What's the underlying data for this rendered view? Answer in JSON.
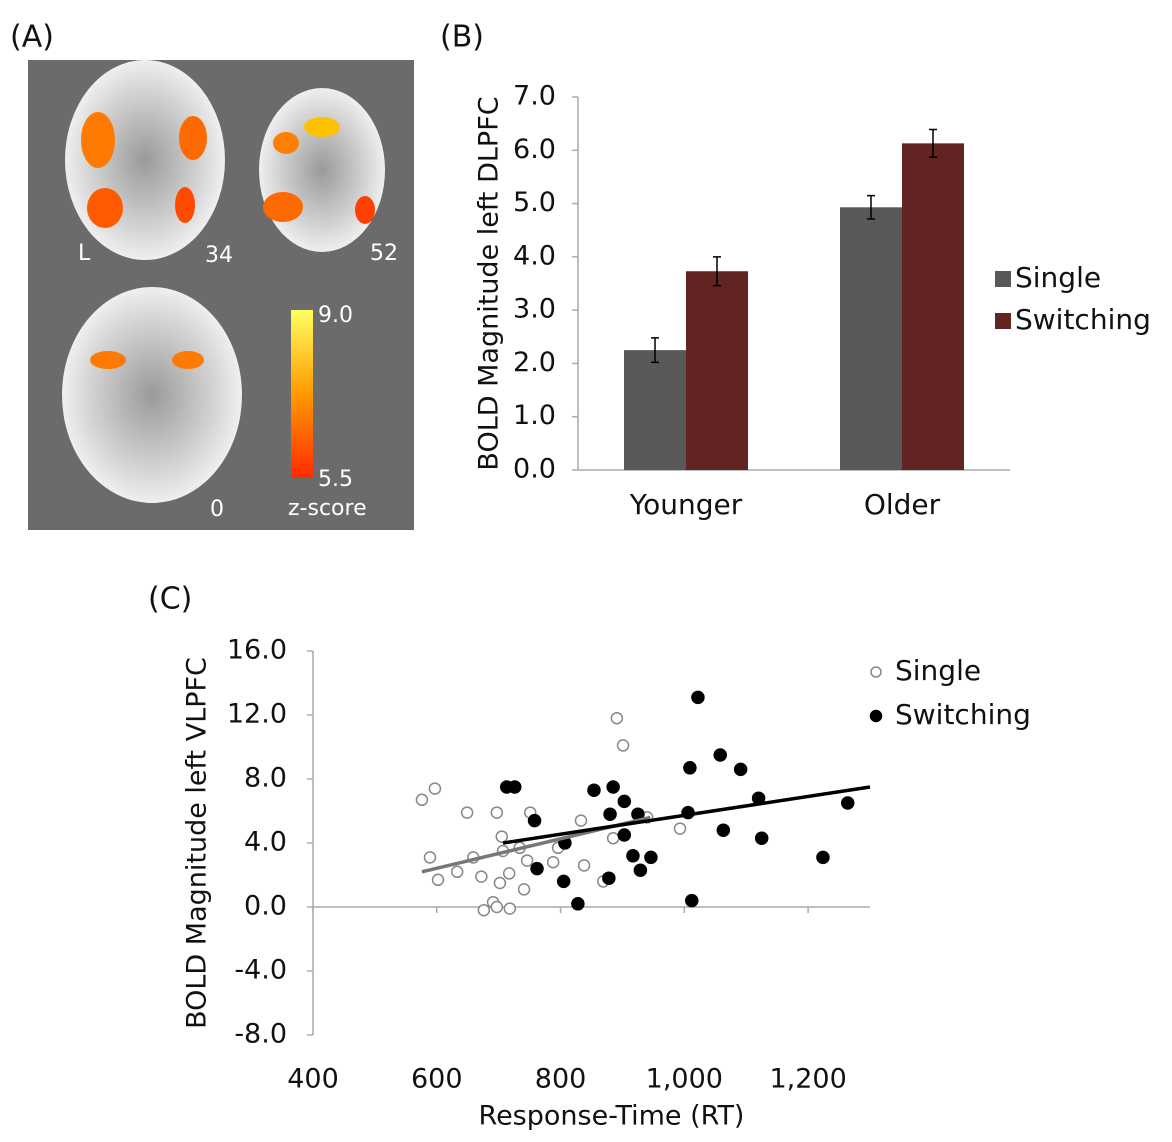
{
  "panel_a": {
    "label": "(A)",
    "slice_labels": [
      "L",
      "34",
      "52",
      "0"
    ],
    "colorbar": {
      "max": "9.0",
      "min": "5.5",
      "title": "z-score"
    }
  },
  "chart_data": [
    {
      "type": "bar",
      "panel_label": "(B)",
      "y_label": "BOLD Magnitude left DLPFC",
      "categories": [
        "Younger",
        "Older"
      ],
      "series": [
        {
          "name": "Single",
          "color": "#595959",
          "values": [
            2.25,
            4.93
          ],
          "errors": [
            0.23,
            0.22
          ]
        },
        {
          "name": "Switching",
          "color": "#622423",
          "values": [
            3.73,
            6.13
          ],
          "errors": [
            0.27,
            0.26
          ]
        }
      ],
      "ylim": [
        0,
        7
      ],
      "yticks": [
        {
          "value": 0,
          "label": "0.0"
        },
        {
          "value": 1,
          "label": "1.0"
        },
        {
          "value": 2,
          "label": "2.0"
        },
        {
          "value": 3,
          "label": "3.0"
        },
        {
          "value": 4,
          "label": "4.0"
        },
        {
          "value": 5,
          "label": "5.0"
        },
        {
          "value": 6,
          "label": "6.0"
        },
        {
          "value": 7,
          "label": "7.0"
        }
      ],
      "legend": "right"
    },
    {
      "type": "scatter",
      "panel_label": "(C)",
      "x_label": "Response-Time (RT)",
      "y_label": "BOLD Magnitude left VLPFC",
      "series": [
        {
          "name": "Single",
          "color": "#888888",
          "marker": "open",
          "x": [
            576,
            597,
            589,
            602,
            633,
            649,
            659,
            672,
            705,
            697,
            702,
            691,
            697,
            676,
            718,
            717,
            707,
            734,
            741,
            751,
            746,
            788,
            796,
            833,
            838,
            869,
            885,
            891,
            901,
            940,
            993
          ],
          "y": [
            6.7,
            7.4,
            3.1,
            1.7,
            2.2,
            5.9,
            3.1,
            1.9,
            4.4,
            5.9,
            1.5,
            0.3,
            0,
            -0.2,
            -0.1,
            2.1,
            3.5,
            3.7,
            1.1,
            5.9,
            2.9,
            2.8,
            3.7,
            5.4,
            2.6,
            1.6,
            4.3,
            11.8,
            10.1,
            5.6,
            4.9
          ]
        },
        {
          "name": "Switching",
          "color": "#000000",
          "marker": "filled",
          "x": [
            713,
            726,
            758,
            762,
            807,
            805,
            828,
            854,
            878,
            880,
            885,
            903,
            903,
            917,
            925,
            929,
            946,
            1006,
            1009,
            1012,
            1022,
            1058,
            1063,
            1091,
            1120,
            1125,
            1224,
            1264
          ],
          "y": [
            7.5,
            7.5,
            5.4,
            2.4,
            4.0,
            1.6,
            0.2,
            7.3,
            1.8,
            5.8,
            7.5,
            6.6,
            4.5,
            3.2,
            5.8,
            2.3,
            3.1,
            5.9,
            8.7,
            0.4,
            13.1,
            9.5,
            4.8,
            8.6,
            6.8,
            4.3,
            3.1,
            6.5
          ]
        }
      ],
      "trendlines": [
        {
          "color": "#777777",
          "x": [
            576,
            945
          ],
          "y": [
            2.2,
            5.6
          ]
        },
        {
          "color": "#000000",
          "x": [
            707,
            1300
          ],
          "y": [
            4.0,
            7.5
          ]
        }
      ],
      "xlim": [
        400,
        1300
      ],
      "ylim": [
        -8,
        16
      ],
      "xticks": [
        400,
        600,
        800,
        {
          "value": 1000,
          "label": "1,000"
        },
        {
          "value": 1200,
          "label": "1,200"
        }
      ],
      "yticks": [
        {
          "value": -8,
          "label": "-8.0"
        },
        {
          "value": -4,
          "label": "-4.0"
        },
        {
          "value": 0,
          "label": "0.0"
        },
        {
          "value": 4,
          "label": "4.0"
        },
        {
          "value": 8,
          "label": "8.0"
        },
        {
          "value": 12,
          "label": "12.0"
        },
        {
          "value": 16,
          "label": "16.0"
        }
      ],
      "legend": "upper right"
    }
  ]
}
